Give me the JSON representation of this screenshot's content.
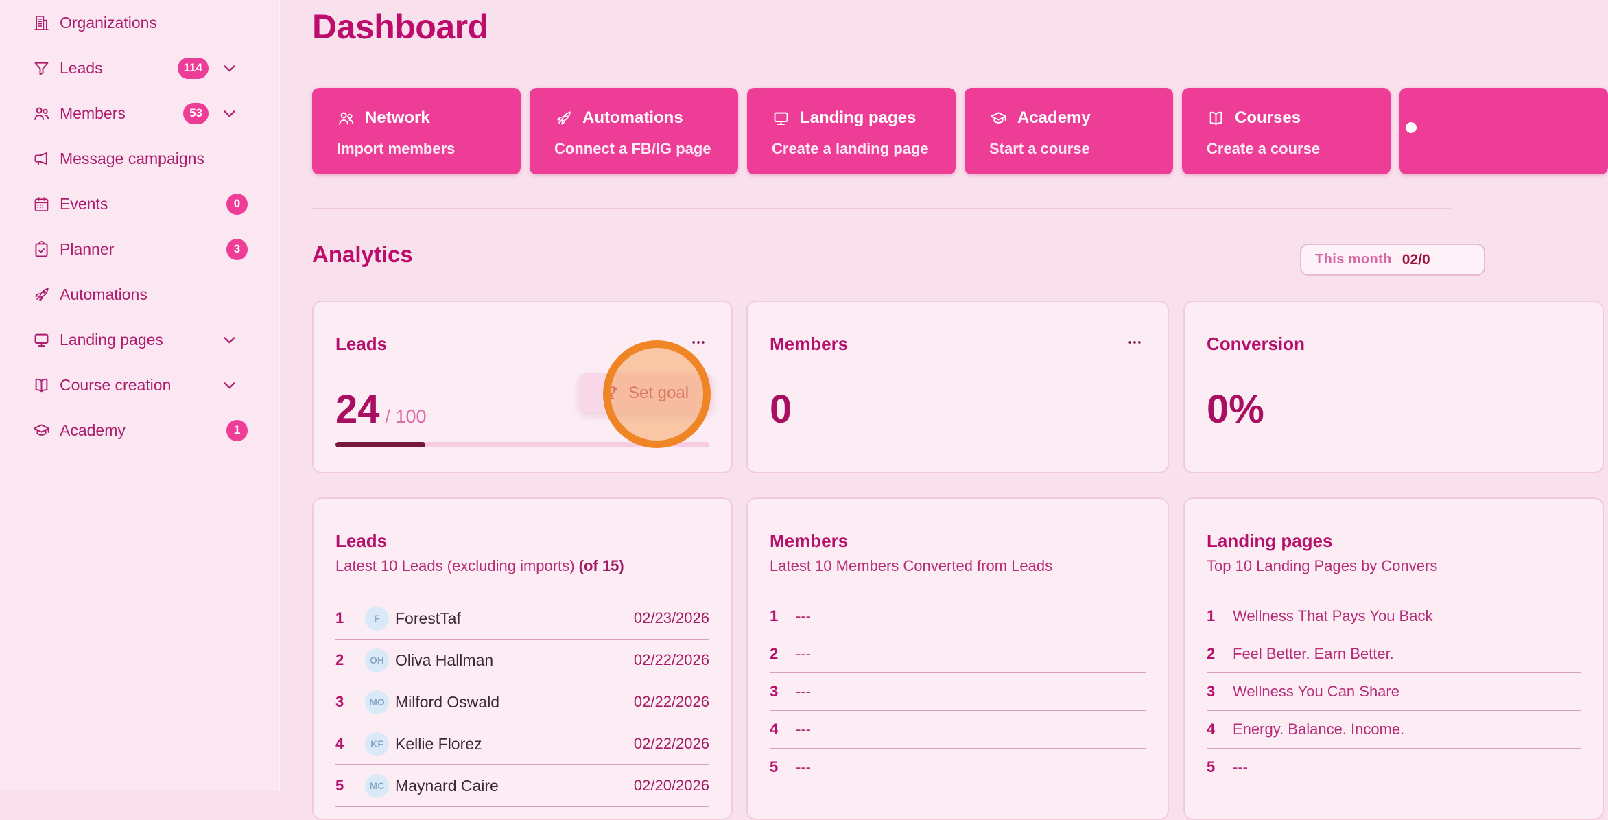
{
  "theme": {
    "accent_pink": "#ee3d96",
    "heading_magenta": "#bd0d6c",
    "progress_fill": "#76173f",
    "highlight_orange": "#ef8524",
    "avatar_blue": "#d9e9f8"
  },
  "sidebar": {
    "items": [
      {
        "label": "Organizations",
        "icon": "building-icon"
      },
      {
        "label": "Leads",
        "icon": "funnel-icon",
        "badge": "114",
        "chevron": true
      },
      {
        "label": "Members",
        "icon": "people-icon",
        "badge": "53",
        "chevron": true
      },
      {
        "label": "Message campaigns",
        "icon": "megaphone-icon"
      },
      {
        "label": "Events",
        "icon": "calendar-icon",
        "badge": "0"
      },
      {
        "label": "Planner",
        "icon": "clipboard-check-icon",
        "badge": "3"
      },
      {
        "label": "Automations",
        "icon": "rocket-icon"
      },
      {
        "label": "Landing pages",
        "icon": "monitor-icon",
        "chevron": true
      },
      {
        "label": "Course creation",
        "icon": "book-open-icon",
        "chevron": true
      },
      {
        "label": "Academy",
        "icon": "graduation-cap-icon",
        "badge": "1"
      }
    ]
  },
  "header": {
    "title": "Dashboard"
  },
  "quick_actions": [
    {
      "icon": "people-icon",
      "title": "Network",
      "subtitle": "Import members"
    },
    {
      "icon": "rocket-icon",
      "title": "Automations",
      "subtitle": "Connect a FB/IG page"
    },
    {
      "icon": "monitor-icon",
      "title": "Landing pages",
      "subtitle": "Create a landing page"
    },
    {
      "icon": "graduation-cap-icon",
      "title": "Academy",
      "subtitle": "Start a course"
    },
    {
      "icon": "book-open-icon",
      "title": "Courses",
      "subtitle": "Create a course"
    }
  ],
  "analytics": {
    "heading": "Analytics",
    "period": {
      "label": "This month",
      "date": "02/0"
    },
    "leads_metric": {
      "title": "Leads",
      "value": "24",
      "goal": "/ 100",
      "progress_percent": 24
    },
    "members_metric": {
      "title": "Members",
      "value": "0"
    },
    "conversion_metric": {
      "title": "Conversion",
      "value": "0%"
    },
    "set_goal": {
      "label": "Set goal"
    }
  },
  "lists": {
    "leads": {
      "title": "Leads",
      "subtitle": "Latest 10 Leads (excluding imports)",
      "subtitle_bold": "(of 15)",
      "rows": [
        {
          "num": "1",
          "initials": "F",
          "name": "ForestTaf",
          "date": "02/23/2026"
        },
        {
          "num": "2",
          "initials": "OH",
          "name": "Oliva Hallman",
          "date": "02/22/2026"
        },
        {
          "num": "3",
          "initials": "MO",
          "name": "Milford Oswald",
          "date": "02/22/2026"
        },
        {
          "num": "4",
          "initials": "KF",
          "name": "Kellie Florez",
          "date": "02/22/2026"
        },
        {
          "num": "5",
          "initials": "MC",
          "name": "Maynard Caire",
          "date": "02/20/2026"
        }
      ]
    },
    "members": {
      "title": "Members",
      "subtitle": "Latest 10 Members Converted from Leads",
      "rows": [
        {
          "num": "1",
          "value": "---"
        },
        {
          "num": "2",
          "value": "---"
        },
        {
          "num": "3",
          "value": "---"
        },
        {
          "num": "4",
          "value": "---"
        },
        {
          "num": "5",
          "value": "---"
        }
      ]
    },
    "landing_pages": {
      "title": "Landing pages",
      "subtitle": "Top 10 Landing Pages by Convers",
      "rows": [
        {
          "num": "1",
          "value": "Wellness That Pays You Back"
        },
        {
          "num": "2",
          "value": "Feel Better. Earn Better."
        },
        {
          "num": "3",
          "value": "Wellness You Can Share"
        },
        {
          "num": "4",
          "value": "Energy. Balance. Income."
        },
        {
          "num": "5",
          "value": "---"
        }
      ]
    }
  }
}
